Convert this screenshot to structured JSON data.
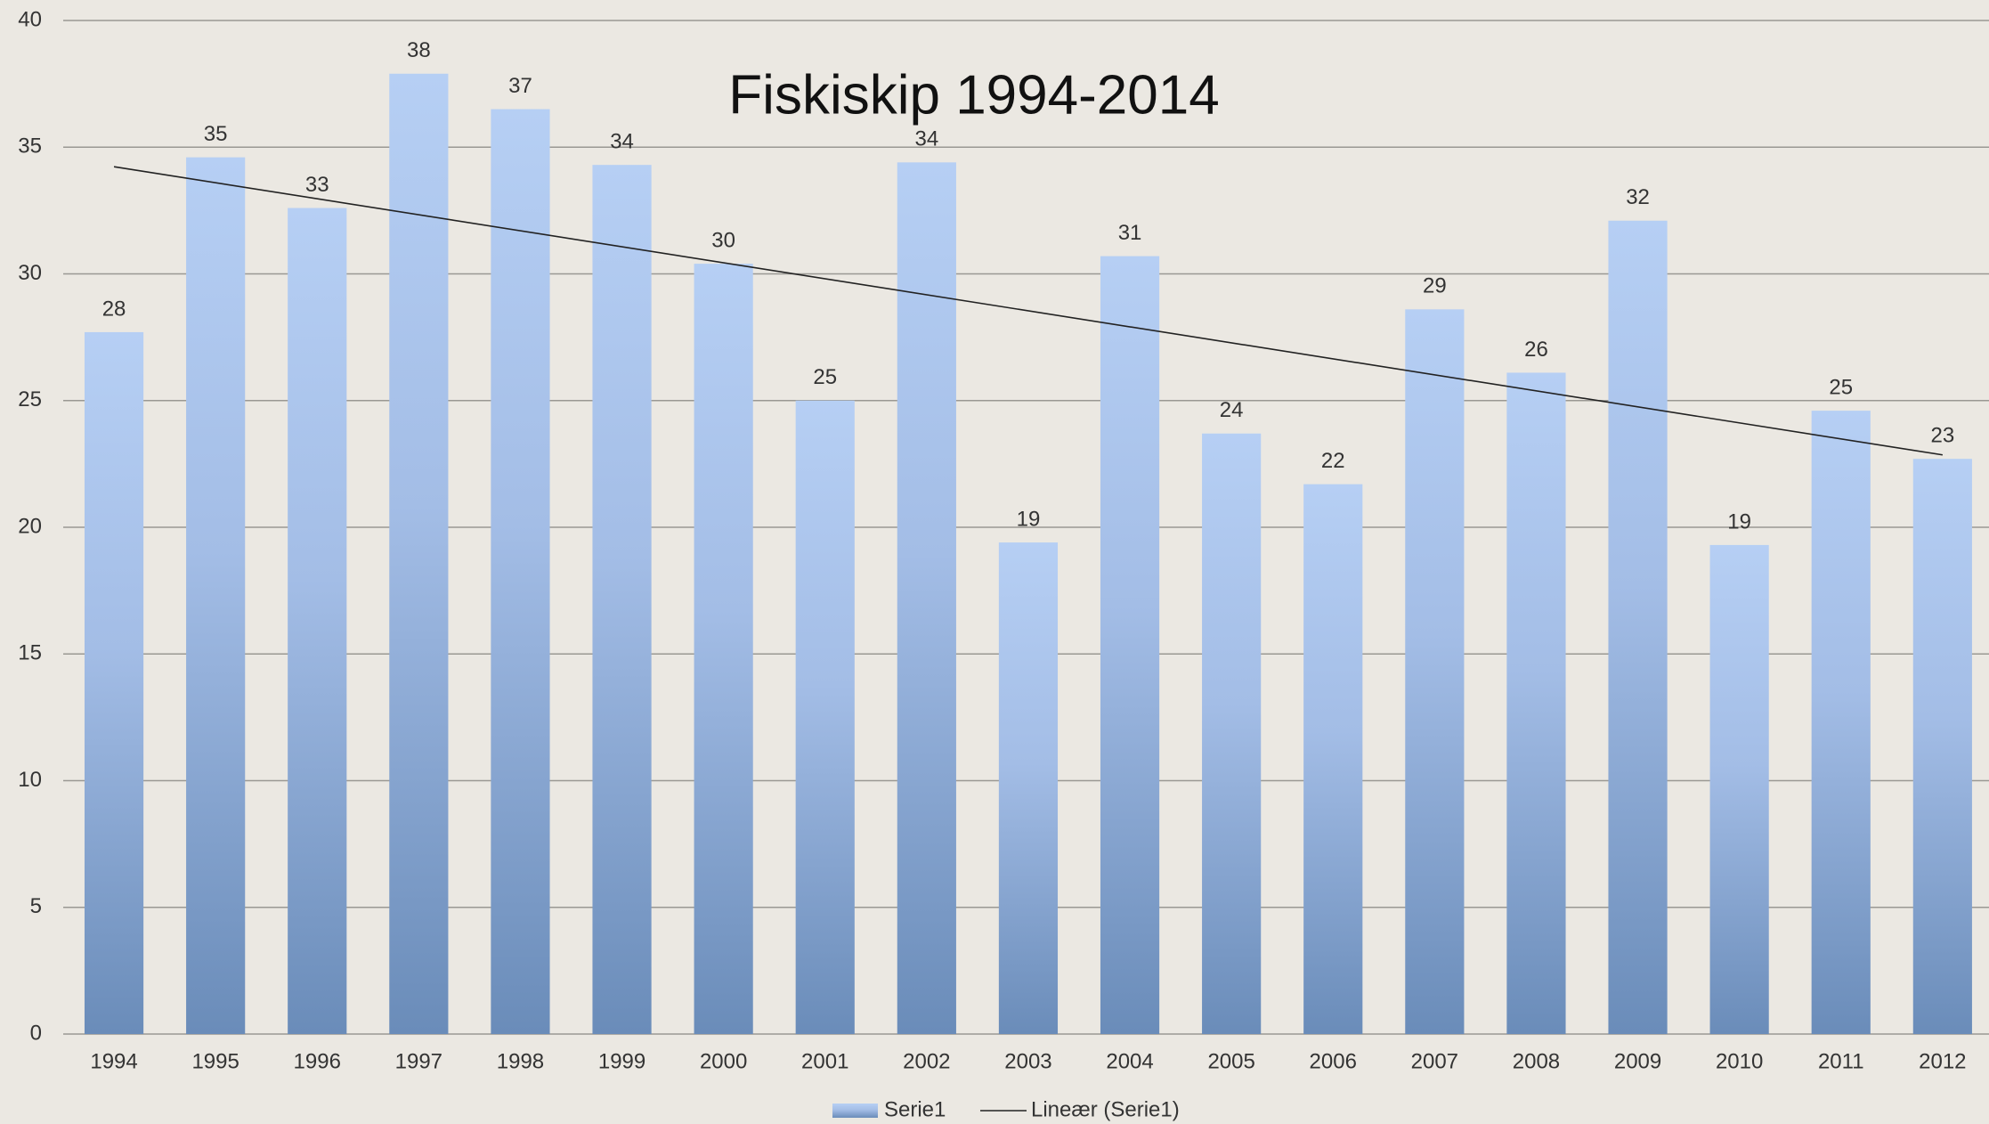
{
  "chart_data": {
    "type": "bar",
    "title": "Fiskiskip 1994-2014",
    "categories": [
      "1994",
      "1995",
      "1996",
      "1997",
      "1998",
      "1999",
      "2000",
      "2001",
      "2002",
      "2003",
      "2004",
      "2005",
      "2006",
      "2007",
      "2008",
      "2009",
      "2010",
      "2011",
      "2012"
    ],
    "series": [
      {
        "name": "Serie1",
        "color": "#8fb0dc",
        "values": [
          27.7,
          34.6,
          32.6,
          37.9,
          36.5,
          34.3,
          30.4,
          25.0,
          34.4,
          19.4,
          30.7,
          23.7,
          21.7,
          28.6,
          26.1,
          32.1,
          19.3,
          24.6,
          22.7
        ],
        "value_labels": [
          "28",
          "35",
          "33",
          "38",
          "37",
          "34",
          "30",
          "25",
          "34",
          "19",
          "31",
          "24",
          "22",
          "29",
          "26",
          "32",
          "19",
          "25",
          "23"
        ]
      }
    ],
    "trendline": {
      "name": "Lineær (Serie1)",
      "type": "linear",
      "color": "#222222"
    },
    "ylim": [
      0,
      40
    ],
    "yticks": [
      0,
      5,
      10,
      15,
      20,
      25,
      30,
      35,
      40
    ],
    "grid": true,
    "legend": "bottom"
  }
}
